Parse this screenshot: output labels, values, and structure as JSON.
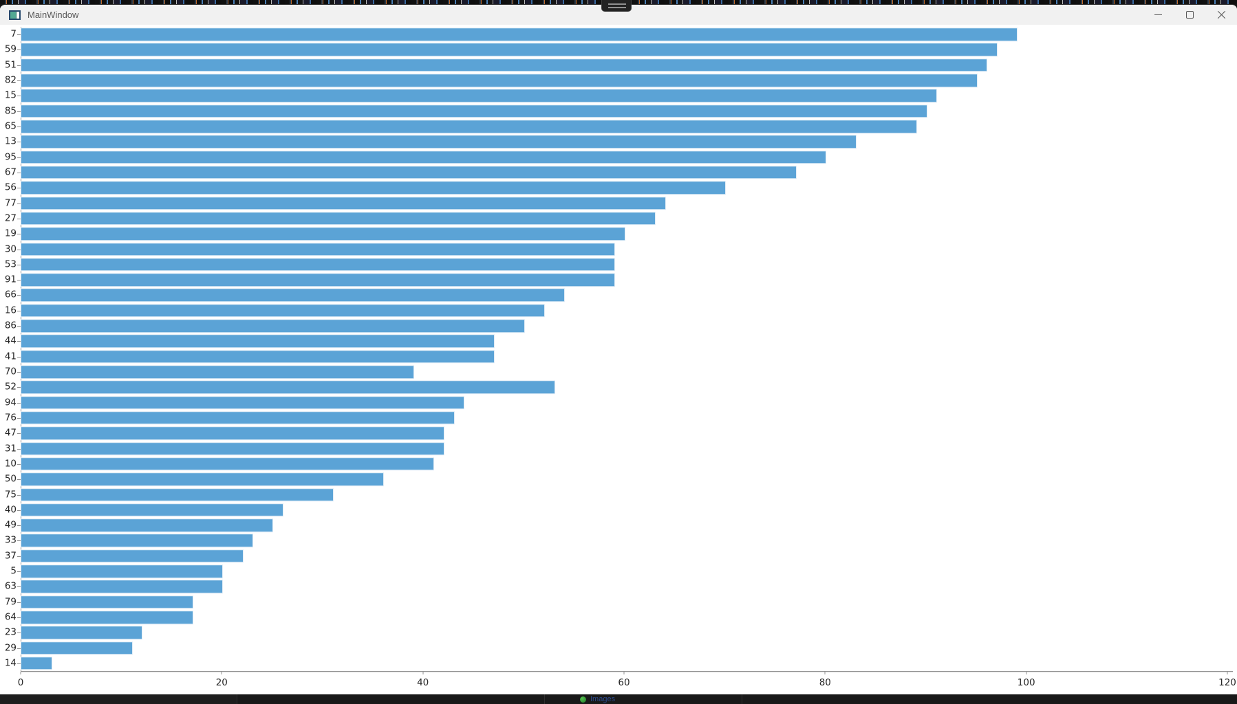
{
  "window": {
    "title": "MainWindow",
    "icons": {
      "app": "app-window-icon",
      "minimize": "minimize-icon",
      "maximize": "maximize-icon",
      "close": "close-icon"
    }
  },
  "taskbar": {
    "app_label": "Images"
  },
  "chart_data": {
    "type": "bar",
    "orientation": "horizontal",
    "title": "",
    "xlabel": "",
    "ylabel": "",
    "bar_color": "#5ba3d6",
    "background": "#ffffff",
    "grid": false,
    "legend": null,
    "xlim": [
      0,
      120
    ],
    "xticks": [
      0,
      20,
      40,
      60,
      80,
      100,
      120
    ],
    "categories": [
      "7",
      "59",
      "51",
      "82",
      "15",
      "85",
      "65",
      "13",
      "95",
      "67",
      "56",
      "77",
      "27",
      "19",
      "30",
      "53",
      "91",
      "66",
      "16",
      "86",
      "44",
      "41",
      "70",
      "52",
      "94",
      "76",
      "47",
      "31",
      "10",
      "50",
      "75",
      "40",
      "49",
      "33",
      "37",
      "5",
      "63",
      "79",
      "64",
      "23",
      "29",
      "14"
    ],
    "values": [
      99,
      97,
      96,
      95,
      91,
      90,
      89,
      83,
      80,
      77,
      70,
      64,
      63,
      60,
      59,
      59,
      59,
      54,
      52,
      50,
      47,
      47,
      39,
      53,
      44,
      43,
      42,
      42,
      41,
      36,
      31,
      26,
      25,
      23,
      22,
      20,
      20,
      17,
      17,
      12,
      11,
      3
    ]
  }
}
